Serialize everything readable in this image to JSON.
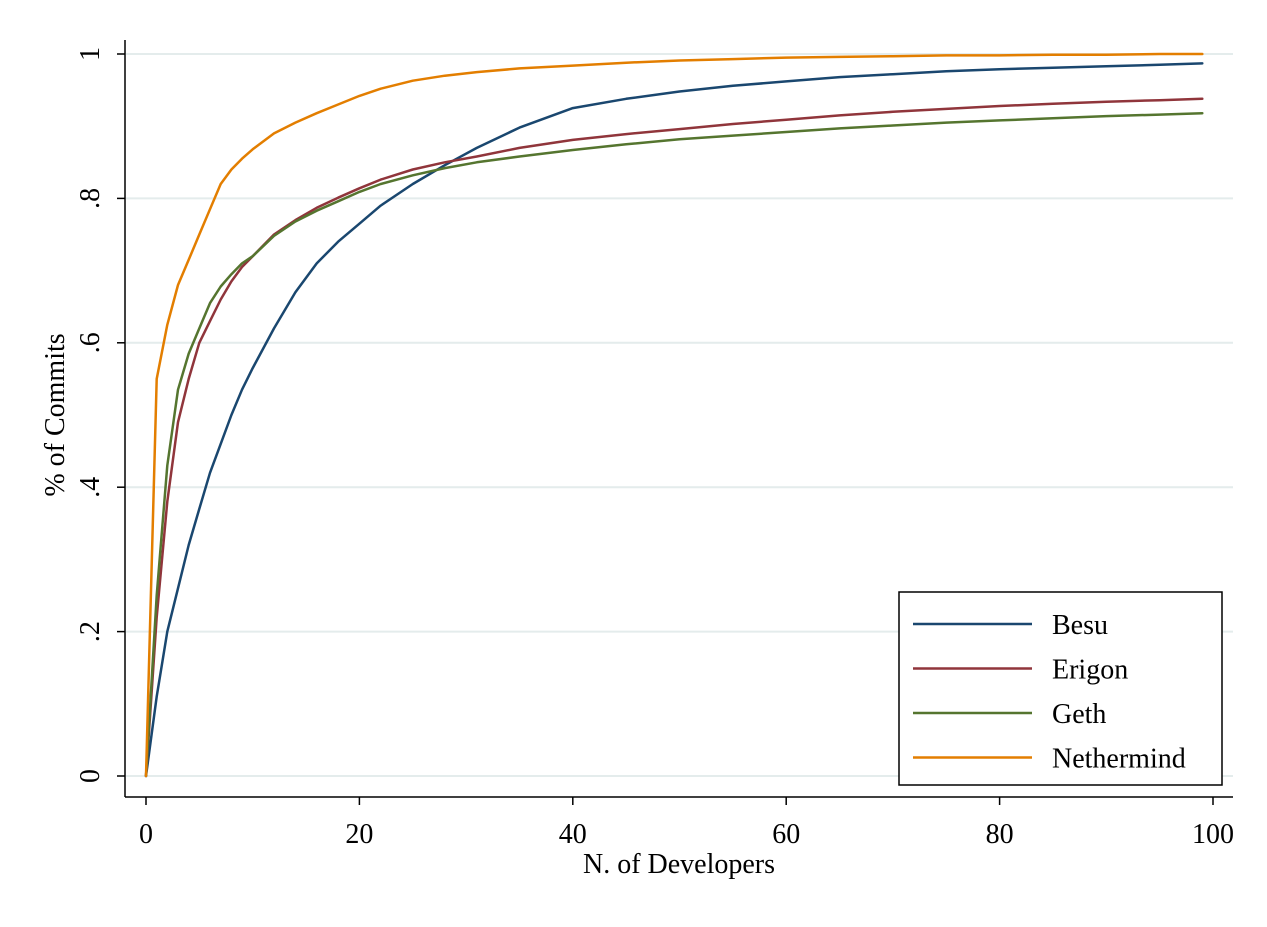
{
  "chart_data": {
    "type": "line",
    "title": "",
    "xlabel": "N. of Developers",
    "ylabel": "% of Commits",
    "xlim": [
      0,
      100
    ],
    "ylim": [
      0,
      1
    ],
    "x_ticks": [
      0,
      20,
      40,
      60,
      80,
      100
    ],
    "x_tick_labels": [
      "0",
      "20",
      "40",
      "60",
      "80",
      "100"
    ],
    "y_ticks": [
      0,
      0.2,
      0.4,
      0.6,
      0.8,
      1
    ],
    "y_tick_labels": [
      "0",
      ".2",
      ".4",
      ".6",
      ".8",
      "1"
    ],
    "grid": "horizontal",
    "legend_position": "bottom-right",
    "series": [
      {
        "name": "Besu",
        "color": "#1a476f",
        "x": [
          0,
          1,
          2,
          3,
          4,
          5,
          6,
          7,
          8,
          9,
          10,
          12,
          14,
          16,
          18,
          20,
          22,
          25,
          28,
          31,
          35,
          40,
          45,
          50,
          55,
          60,
          65,
          70,
          75,
          80,
          85,
          90,
          95,
          99
        ],
        "y": [
          0,
          0.11,
          0.2,
          0.26,
          0.32,
          0.37,
          0.42,
          0.46,
          0.5,
          0.535,
          0.565,
          0.62,
          0.67,
          0.71,
          0.74,
          0.765,
          0.79,
          0.82,
          0.846,
          0.87,
          0.898,
          0.925,
          0.938,
          0.948,
          0.956,
          0.962,
          0.968,
          0.972,
          0.976,
          0.979,
          0.981,
          0.983,
          0.985,
          0.987
        ]
      },
      {
        "name": "Erigon",
        "color": "#90353b",
        "x": [
          0,
          1,
          2,
          3,
          4,
          5,
          6,
          7,
          8,
          9,
          10,
          12,
          14,
          16,
          18,
          20,
          22,
          25,
          28,
          31,
          35,
          40,
          45,
          50,
          55,
          60,
          65,
          70,
          75,
          80,
          85,
          90,
          95,
          99
        ],
        "y": [
          0,
          0.22,
          0.38,
          0.49,
          0.55,
          0.6,
          0.63,
          0.66,
          0.685,
          0.705,
          0.72,
          0.75,
          0.77,
          0.787,
          0.801,
          0.814,
          0.826,
          0.84,
          0.85,
          0.858,
          0.87,
          0.881,
          0.889,
          0.896,
          0.903,
          0.909,
          0.915,
          0.92,
          0.924,
          0.928,
          0.931,
          0.934,
          0.936,
          0.938
        ]
      },
      {
        "name": "Geth",
        "color": "#55752f",
        "x": [
          0,
          1,
          2,
          3,
          4,
          5,
          6,
          7,
          8,
          9,
          10,
          12,
          14,
          16,
          18,
          20,
          22,
          25,
          28,
          31,
          35,
          40,
          45,
          50,
          55,
          60,
          65,
          70,
          75,
          80,
          85,
          90,
          95,
          99
        ],
        "y": [
          0,
          0.25,
          0.43,
          0.535,
          0.585,
          0.62,
          0.655,
          0.678,
          0.695,
          0.71,
          0.72,
          0.748,
          0.768,
          0.783,
          0.796,
          0.809,
          0.82,
          0.832,
          0.842,
          0.85,
          0.858,
          0.867,
          0.875,
          0.882,
          0.887,
          0.892,
          0.897,
          0.901,
          0.905,
          0.908,
          0.911,
          0.914,
          0.916,
          0.918
        ]
      },
      {
        "name": "Nethermind",
        "color": "#e37e00",
        "x": [
          0,
          1,
          2,
          3,
          4,
          5,
          6,
          7,
          8,
          9,
          10,
          12,
          14,
          16,
          18,
          20,
          22,
          25,
          28,
          31,
          35,
          40,
          45,
          50,
          55,
          60,
          65,
          70,
          75,
          80,
          85,
          90,
          95,
          99
        ],
        "y": [
          0,
          0.55,
          0.625,
          0.68,
          0.715,
          0.75,
          0.785,
          0.82,
          0.84,
          0.855,
          0.868,
          0.89,
          0.905,
          0.918,
          0.93,
          0.942,
          0.952,
          0.963,
          0.97,
          0.975,
          0.98,
          0.984,
          0.988,
          0.991,
          0.993,
          0.995,
          0.996,
          0.997,
          0.998,
          0.998,
          0.999,
          0.999,
          1,
          1
        ]
      }
    ]
  }
}
